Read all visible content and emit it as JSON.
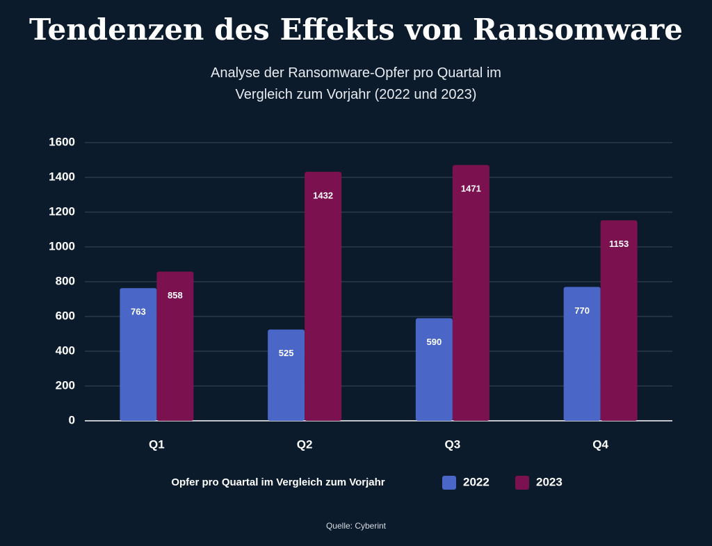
{
  "chart_data": {
    "type": "bar",
    "title": "Tendenzen des Effekts von Ransomware",
    "subtitle": "Analyse der Ransomware-Opfer pro Quartal im Vergleich zum Vorjahr (2022 und 2023)",
    "categories": [
      "Q1",
      "Q2",
      "Q3",
      "Q4"
    ],
    "series": [
      {
        "name": "2022",
        "color": "#4a66c6",
        "values": [
          763,
          525,
          590,
          770
        ]
      },
      {
        "name": "2023",
        "color": "#7c1150",
        "values": [
          858,
          1432,
          1471,
          1153
        ]
      }
    ],
    "ylim": [
      0,
      1600
    ],
    "yticks": [
      0,
      200,
      400,
      600,
      800,
      1000,
      1200,
      1400,
      1600
    ],
    "grid": true,
    "legend_title": "Opfer pro Quartal im Vergleich zum Vorjahr",
    "source": "Quelle: Cyberint"
  }
}
